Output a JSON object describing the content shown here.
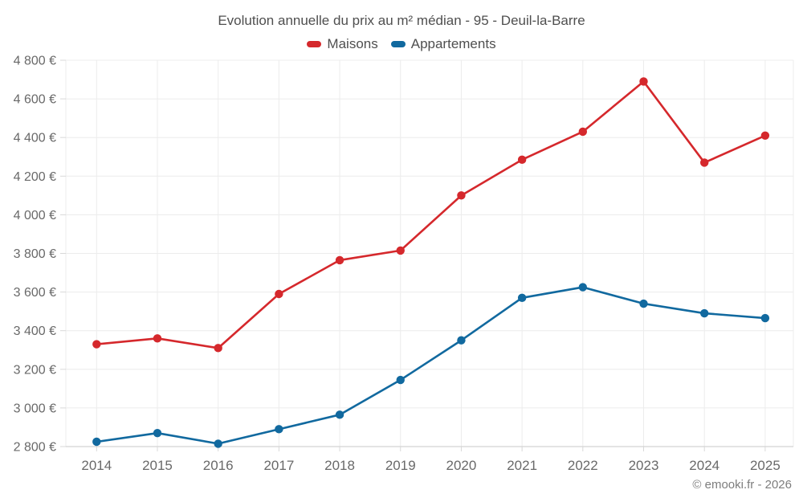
{
  "header": {
    "title": "Evolution annuelle du prix au m² médian - 95 - Deuil-la-Barre"
  },
  "legend": {
    "items": [
      {
        "label": "Maisons",
        "color": "#d5282c"
      },
      {
        "label": "Appartements",
        "color": "#11699f"
      }
    ]
  },
  "footer": {
    "credit": "© emooki.fr - 2026"
  },
  "chart_data": {
    "type": "line",
    "title": "Evolution annuelle du prix au m² médian - 95 - Deuil-la-Barre",
    "categories": [
      "2014",
      "2015",
      "2016",
      "2017",
      "2018",
      "2019",
      "2020",
      "2021",
      "2022",
      "2023",
      "2024",
      "2025"
    ],
    "series": [
      {
        "name": "Maisons",
        "color": "#d5282c",
        "values": [
          3330,
          3360,
          3310,
          3590,
          3765,
          3815,
          4100,
          4285,
          4430,
          4690,
          4270,
          4410
        ]
      },
      {
        "name": "Appartements",
        "color": "#11699f",
        "values": [
          2825,
          2870,
          2815,
          2890,
          2965,
          3145,
          3350,
          3570,
          3625,
          3540,
          3490,
          3465
        ]
      }
    ],
    "xlabel": "",
    "ylabel": "",
    "ylim": [
      2800,
      4800
    ],
    "ytick_step": 200,
    "ytick_suffix": " €",
    "grid": true,
    "legend_position": "top",
    "colors": {
      "grid": "#ececec",
      "axis_line": "#c9c9c9",
      "tick": "#d8d8d8",
      "tick_label": "#696969"
    }
  }
}
